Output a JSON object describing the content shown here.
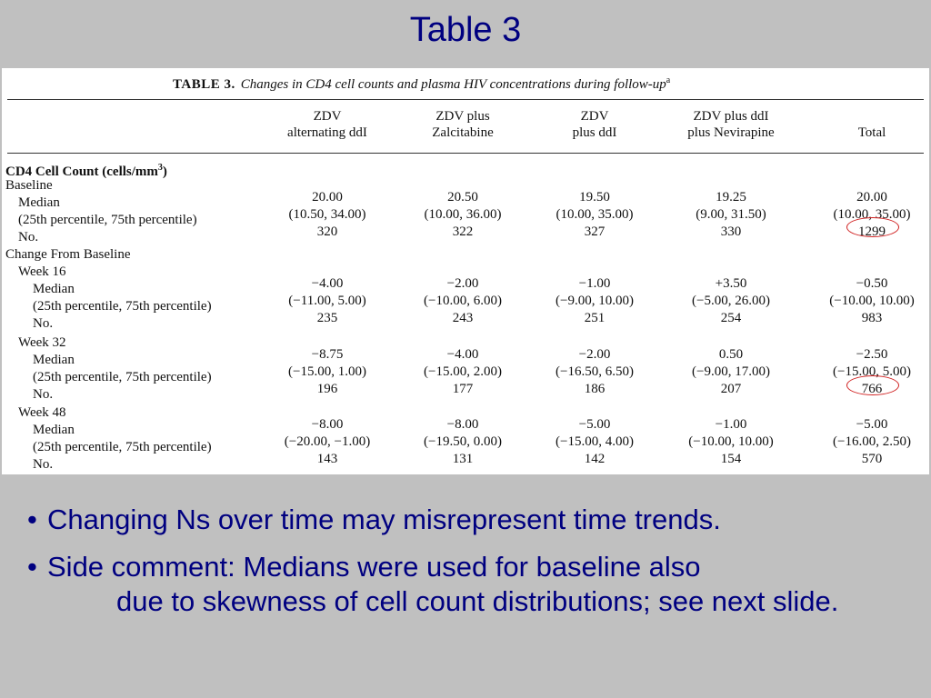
{
  "slide": {
    "title": "Table 3"
  },
  "table": {
    "caption_label": "TABLE 3.",
    "caption_text": "Changes in CD4 cell counts and plasma HIV concentrations during follow-up",
    "caption_sup": "a",
    "columns": [
      {
        "line1": "ZDV",
        "line2": "alternating ddI"
      },
      {
        "line1": "ZDV plus",
        "line2": "Zalcitabine"
      },
      {
        "line1": "ZDV",
        "line2": "plus ddI"
      },
      {
        "line1": "ZDV plus ddI",
        "line2": "plus Nevirapine"
      },
      {
        "line1": "",
        "line2": "Total"
      }
    ],
    "section_title": "CD4 Cell Count (cells/mm",
    "section_sup": "3",
    "section_title_end": ")",
    "labels": {
      "baseline": "Baseline",
      "median": "Median",
      "pct": "(25th percentile, 75th percentile)",
      "no": "No.",
      "change": "Change From Baseline",
      "week16": "Week 16",
      "week32": "Week 32",
      "week48": "Week 48"
    },
    "groups": [
      {
        "median": [
          "20.00",
          "20.50",
          "19.50",
          "19.25",
          "20.00"
        ],
        "pct": [
          "(10.50, 34.00)",
          "(10.00, 36.00)",
          "(10.00, 35.00)",
          "(9.00, 31.50)",
          "(10.00, 35.00)"
        ],
        "no": [
          "320",
          "322",
          "327",
          "330",
          "1299"
        ]
      },
      {
        "median": [
          "−4.00",
          "−2.00",
          "−1.00",
          "+3.50",
          "−0.50"
        ],
        "pct": [
          "(−11.00, 5.00)",
          "(−10.00, 6.00)",
          "(−9.00, 10.00)",
          "(−5.00, 26.00)",
          "(−10.00, 10.00)"
        ],
        "no": [
          "235",
          "243",
          "251",
          "254",
          "983"
        ]
      },
      {
        "median": [
          "−8.75",
          "−4.00",
          "−2.00",
          "0.50",
          "−2.50"
        ],
        "pct": [
          "(−15.00, 1.00)",
          "(−15.00, 2.00)",
          "(−16.50, 6.50)",
          "(−9.00, 17.00)",
          "(−15.00, 5.00)"
        ],
        "no": [
          "196",
          "177",
          "186",
          "207",
          "766"
        ]
      },
      {
        "median": [
          "−8.00",
          "−8.00",
          "−5.00",
          "−1.00",
          "−5.00"
        ],
        "pct": [
          "(−20.00, −1.00)",
          "(−19.50, 0.00)",
          "(−15.00, 4.00)",
          "(−10.00, 10.00)",
          "(−16.00, 2.50)"
        ],
        "no": [
          "143",
          "131",
          "142",
          "154",
          "570"
        ]
      }
    ]
  },
  "bullets": [
    {
      "line1": "Changing Ns over time may misrepresent time trends.",
      "line2": ""
    },
    {
      "line1": "Side comment: Medians were used for baseline also",
      "line2": "due to skewness of cell count distributions; see next slide."
    }
  ],
  "colors": {
    "background": "#c0c0c0",
    "text_accent": "#000080",
    "annotation_circle": "#d02020"
  }
}
